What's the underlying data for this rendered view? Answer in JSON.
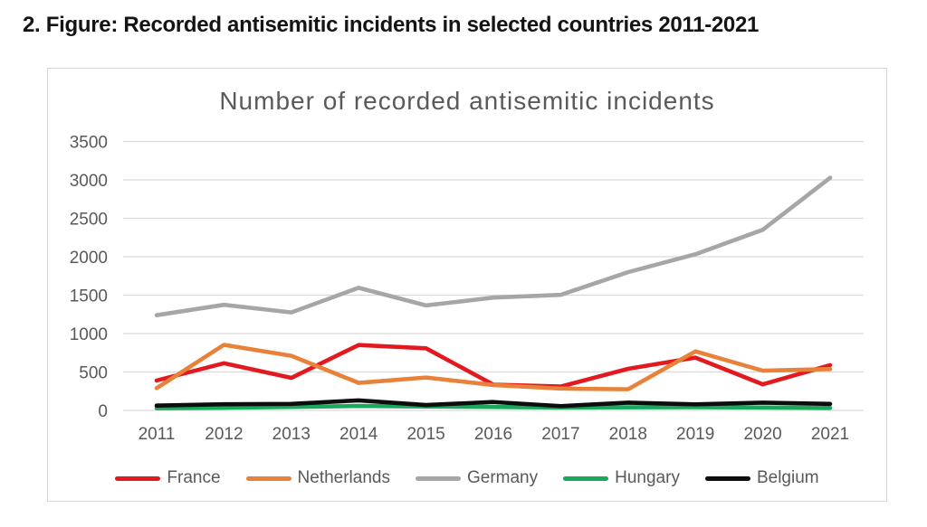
{
  "caption": "2. Figure: Recorded antisemitic incidents in selected countries 2011-2021",
  "chart_data": {
    "type": "line",
    "title": "Number of recorded antisemitic incidents",
    "x": [
      "2011",
      "2012",
      "2013",
      "2014",
      "2015",
      "2016",
      "2017",
      "2018",
      "2019",
      "2020",
      "2021"
    ],
    "series": [
      {
        "name": "France",
        "color": "#e21a20",
        "values": [
          389,
          614,
          423,
          851,
          808,
          335,
          311,
          541,
          687,
          339,
          589
        ]
      },
      {
        "name": "Netherlands",
        "color": "#e8823a",
        "values": [
          289,
          853,
          710,
          358,
          428,
          330,
          284,
          275,
          768,
          517,
          538
        ]
      },
      {
        "name": "Germany",
        "color": "#a6a6a6",
        "values": [
          1239,
          1374,
          1275,
          1596,
          1366,
          1468,
          1504,
          1799,
          2032,
          2351,
          3027
        ]
      },
      {
        "name": "Hungary",
        "color": "#19a85c",
        "values": [
          28,
          35,
          45,
          58,
          50,
          45,
          38,
          40,
          42,
          38,
          32
        ]
      },
      {
        "name": "Belgium",
        "color": "#0d0d0d",
        "values": [
          62,
          80,
          85,
          130,
          70,
          109,
          56,
          101,
          79,
          101,
          84
        ]
      }
    ],
    "ylim": [
      0,
      3500
    ],
    "ytick_step": 500,
    "grid": true,
    "legend_position": "bottom",
    "axis_text_color": "#595959",
    "grid_color": "#d9d9d9",
    "title_color": "#5a5a5a"
  }
}
